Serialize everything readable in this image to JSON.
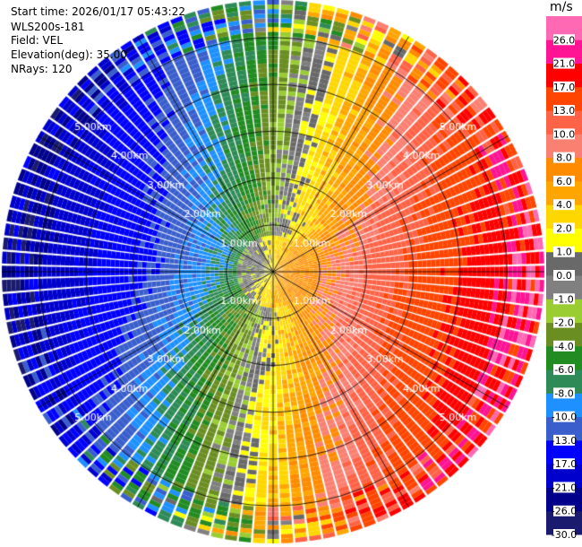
{
  "info": {
    "start_time": "Start time: 2026/01/17 05:43:22",
    "station": "WLS200s-181",
    "field": "Field: VEL",
    "elevation": "Elevation(deg): 35.00",
    "nrays": "NRays: 120"
  },
  "chart_data": {
    "type": "heatmap",
    "projection": "polar-ppi",
    "field": "VEL",
    "unit": "m/s",
    "nrays": 120,
    "range_rings_km": [
      1.0,
      2.0,
      3.0,
      4.0,
      5.0
    ],
    "range_labels": [
      "1.00km",
      "2.00km",
      "3.00km",
      "4.00km",
      "5.00km"
    ],
    "max_range_km": 5.8,
    "colorbar": {
      "ticks": [
        "-30.0",
        "-26.0",
        "-21.0",
        "-17.0",
        "-13.0",
        "-10.0",
        "-8.0",
        "-6.0",
        "-4.0",
        "-2.0",
        "-1.0",
        "0.0",
        "1.0",
        "2.0",
        "4.0",
        "6.0",
        "8.0",
        "10.0",
        "13.0",
        "17.0",
        "21.0",
        "26.0"
      ],
      "colors": [
        "#1a1a6e",
        "#00008b",
        "#0000cd",
        "#0000ff",
        "#3a5fcd",
        "#1e90ff",
        "#2e8b57",
        "#228b22",
        "#6b8e23",
        "#9acd32",
        "#808080",
        "#696969",
        "#ffff00",
        "#ffd700",
        "#ffa500",
        "#ff8c00",
        "#fa8072",
        "#ff6347",
        "#ff4500",
        "#ff0000",
        "#ff1493",
        "#ff69b4"
      ]
    }
  }
}
